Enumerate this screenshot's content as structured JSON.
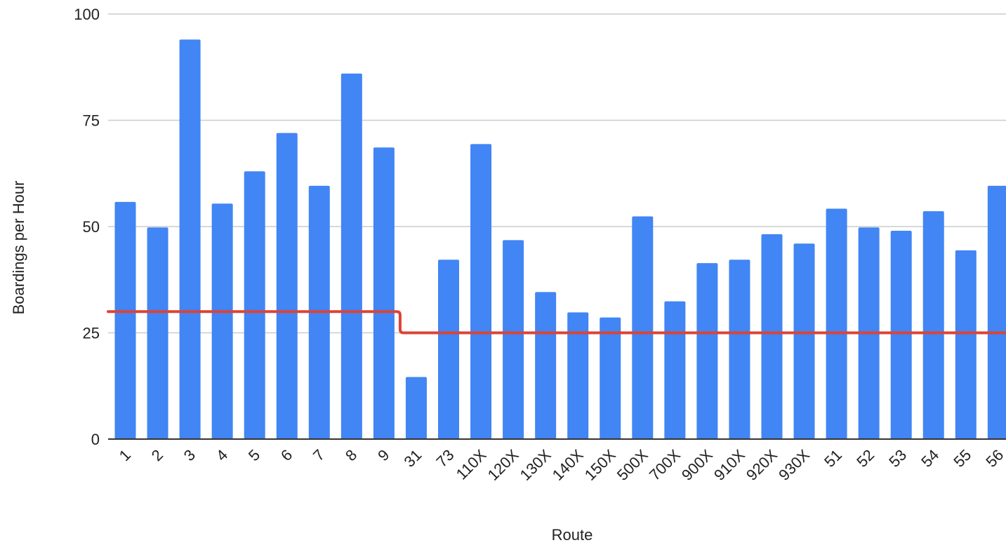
{
  "chart_data": {
    "type": "bar",
    "title": "",
    "xlabel": "Route",
    "ylabel": "Boardings per Hour",
    "ylim": [
      0,
      100
    ],
    "yticks": [
      0,
      25,
      50,
      75,
      100
    ],
    "grid": true,
    "categories": [
      "1",
      "2",
      "3",
      "4",
      "5",
      "6",
      "7",
      "8",
      "9",
      "31",
      "73",
      "110X",
      "120X",
      "130X",
      "140X",
      "150X",
      "500X",
      "700X",
      "900X",
      "910X",
      "920X",
      "930X",
      "51",
      "52",
      "53",
      "54",
      "55",
      "56"
    ],
    "series": [
      {
        "type": "bar",
        "color": "#4285f4",
        "values": [
          55.8,
          49.8,
          94,
          55.4,
          63,
          72,
          59.6,
          86,
          68.6,
          14.6,
          42.2,
          69.4,
          46.8,
          34.6,
          29.8,
          28.6,
          52.4,
          32.4,
          41.4,
          42.2,
          48.2,
          46,
          54.2,
          49.8,
          49,
          53.6,
          44.4,
          59.6
        ]
      },
      {
        "type": "line",
        "color": "#db4437",
        "values": [
          30,
          30,
          30,
          30,
          30,
          30,
          30,
          30,
          30,
          25,
          25,
          25,
          25,
          25,
          25,
          25,
          25,
          25,
          25,
          25,
          25,
          25,
          25,
          25,
          25,
          25,
          25,
          25
        ]
      }
    ]
  }
}
